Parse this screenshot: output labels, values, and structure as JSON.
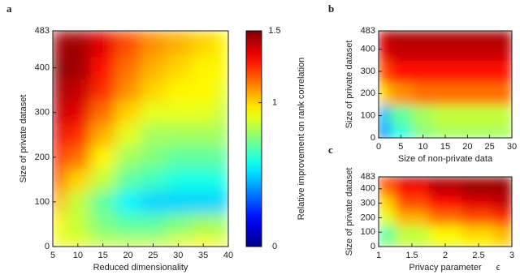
{
  "chart_data": [
    {
      "type": "heatmap",
      "label": "a",
      "colormap": "jet",
      "zlim": [
        0,
        1.5
      ],
      "xlabel": "Reduced dimensionality",
      "ylabel": "Size of private dataset",
      "x": [
        5,
        10,
        15,
        20,
        25,
        30,
        35,
        40
      ],
      "y": [
        0,
        50,
        100,
        150,
        200,
        250,
        300,
        350,
        400,
        450,
        483
      ],
      "z": [
        [
          0.9,
          0.9,
          0.85,
          0.85,
          0.85,
          0.9,
          0.95,
          0.9
        ],
        [
          0.95,
          0.85,
          0.75,
          0.7,
          0.7,
          0.75,
          0.8,
          0.8
        ],
        [
          1.05,
          0.85,
          0.7,
          0.55,
          0.5,
          0.5,
          0.5,
          0.5
        ],
        [
          1.2,
          1.0,
          0.85,
          0.7,
          0.65,
          0.6,
          0.6,
          0.6
        ],
        [
          1.3,
          1.15,
          0.95,
          0.8,
          0.75,
          0.7,
          0.7,
          0.7
        ],
        [
          1.35,
          1.25,
          1.05,
          0.9,
          0.8,
          0.8,
          0.8,
          0.8
        ],
        [
          1.4,
          1.35,
          1.15,
          1.0,
          0.9,
          0.9,
          0.9,
          0.85
        ],
        [
          1.45,
          1.4,
          1.25,
          1.1,
          1.0,
          0.95,
          0.95,
          0.9
        ],
        [
          1.5,
          1.45,
          1.3,
          1.15,
          1.05,
          1.0,
          0.95,
          0.95
        ],
        [
          1.45,
          1.45,
          1.35,
          1.2,
          1.1,
          1.05,
          1.0,
          0.95
        ],
        [
          1.45,
          1.45,
          1.35,
          1.2,
          1.1,
          1.05,
          1.0,
          0.95
        ]
      ],
      "xlim": [
        5,
        40
      ],
      "ylim": [
        0,
        483
      ],
      "xticks": [
        5,
        10,
        15,
        20,
        25,
        30,
        35,
        40
      ],
      "yticks": [
        0,
        100,
        200,
        300,
        400,
        483
      ],
      "colorbar": {
        "label": "Relative improvement on rank correlation",
        "lim": [
          0,
          1.5
        ],
        "ticks": [
          0,
          1,
          1.5
        ]
      }
    },
    {
      "type": "heatmap",
      "label": "b",
      "colormap": "jet",
      "zlim": [
        0,
        1.5
      ],
      "xlabel": "Size of non-private data",
      "ylabel": "Size of private dataset",
      "x": [
        0,
        5,
        10,
        15,
        20,
        25,
        30
      ],
      "y": [
        0,
        100,
        200,
        300,
        400,
        483
      ],
      "z": [
        [
          0.35,
          0.6,
          0.75,
          0.8,
          0.8,
          0.8,
          0.8
        ],
        [
          0.45,
          0.7,
          0.8,
          0.85,
          0.85,
          0.85,
          0.85
        ],
        [
          1.0,
          1.1,
          1.15,
          1.15,
          1.15,
          1.15,
          1.15
        ],
        [
          1.2,
          1.3,
          1.3,
          1.3,
          1.3,
          1.3,
          1.3
        ],
        [
          1.35,
          1.4,
          1.4,
          1.4,
          1.4,
          1.4,
          1.4
        ],
        [
          1.4,
          1.45,
          1.45,
          1.45,
          1.45,
          1.45,
          1.45
        ]
      ],
      "xlim": [
        0,
        30
      ],
      "ylim": [
        0,
        483
      ],
      "xticks": [
        0,
        5,
        10,
        15,
        20,
        25,
        30
      ],
      "yticks": [
        0,
        100,
        200,
        300,
        400,
        483
      ]
    },
    {
      "type": "heatmap",
      "label": "c",
      "colormap": "jet",
      "zlim": [
        0,
        1.5
      ],
      "xlabel": "Privacy parameter",
      "xlabel_symbol": "ϵ",
      "ylabel": "Size of private dataset",
      "x": [
        1,
        1.5,
        2,
        2.5,
        3
      ],
      "y": [
        0,
        100,
        200,
        300,
        400,
        483
      ],
      "z": [
        [
          0.75,
          0.85,
          0.9,
          0.95,
          1.0
        ],
        [
          0.7,
          0.85,
          0.95,
          1.0,
          1.05
        ],
        [
          0.9,
          1.05,
          1.15,
          1.2,
          1.25
        ],
        [
          1.0,
          1.2,
          1.3,
          1.35,
          1.4
        ],
        [
          1.15,
          1.3,
          1.4,
          1.45,
          1.45
        ],
        [
          1.3,
          1.4,
          1.45,
          1.45,
          1.5
        ]
      ],
      "xlim": [
        1,
        3
      ],
      "ylim": [
        0,
        483
      ],
      "xticks": [
        1,
        1.5,
        2,
        2.5,
        3
      ],
      "yticks": [
        0,
        100,
        200,
        300,
        400,
        483
      ]
    }
  ]
}
